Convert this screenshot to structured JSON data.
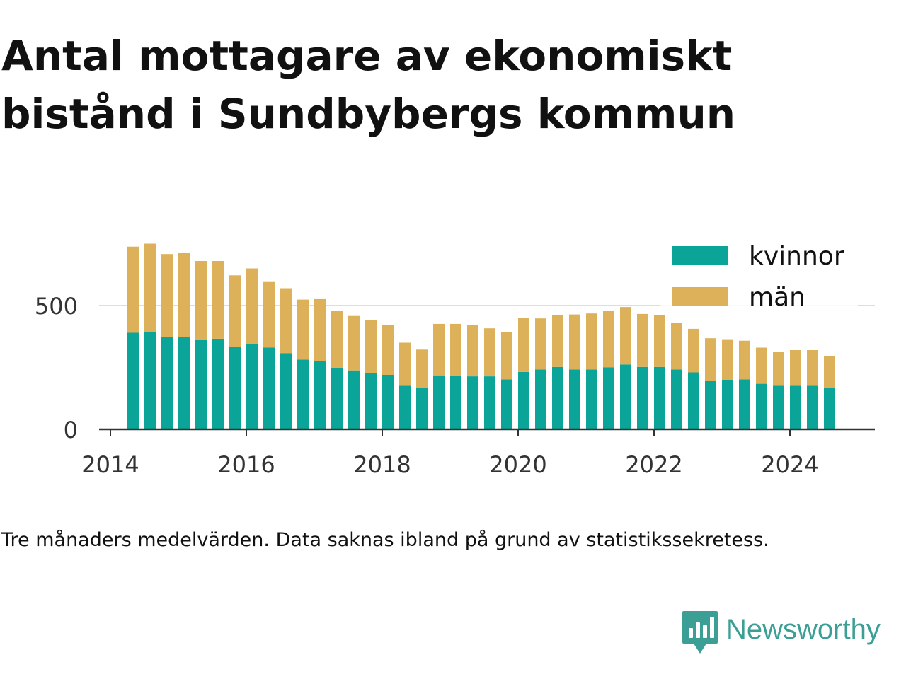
{
  "title": {
    "line1": "Antal mottagare av ekonomiskt",
    "line2": "bistånd i Sundbybergs kommun"
  },
  "note": "Tre månaders medelvärden. Data saknas ibland på grund av statistikssekretess.",
  "brand": {
    "name": "Newsworthy",
    "icon": "newsworthy-logo-icon",
    "color": "#3c9f95"
  },
  "chart_data": {
    "type": "bar",
    "stacked": true,
    "x": [
      "2014-05",
      "2014-08",
      "2014-11",
      "2015-02",
      "2015-05",
      "2015-08",
      "2015-11",
      "2016-02",
      "2016-05",
      "2016-08",
      "2016-11",
      "2017-02",
      "2017-05",
      "2017-08",
      "2017-11",
      "2018-02",
      "2018-05",
      "2018-08",
      "2018-11",
      "2019-02",
      "2019-05",
      "2019-08",
      "2019-11",
      "2020-02",
      "2020-05",
      "2020-08",
      "2020-11",
      "2021-02",
      "2021-05",
      "2021-08",
      "2021-11",
      "2022-02",
      "2022-05",
      "2022-08",
      "2022-11",
      "2023-02",
      "2023-05",
      "2023-08",
      "2023-11",
      "2024-02",
      "2024-05",
      "2024-08"
    ],
    "series": [
      {
        "name": "kvinnor",
        "color": "#0aa598",
        "values": [
          390,
          392,
          372,
          372,
          362,
          366,
          332,
          344,
          330,
          308,
          282,
          276,
          248,
          238,
          228,
          220,
          176,
          168,
          218,
          216,
          214,
          214,
          202,
          232,
          242,
          252,
          242,
          242,
          250,
          262,
          252,
          252,
          242,
          230,
          196,
          200,
          202,
          184,
          176,
          176,
          176,
          168
        ]
      },
      {
        "name": "män",
        "color": "#dcb15a",
        "values": [
          348,
          358,
          336,
          340,
          318,
          314,
          290,
          306,
          268,
          262,
          242,
          250,
          232,
          220,
          212,
          200,
          174,
          154,
          208,
          210,
          206,
          194,
          190,
          218,
          206,
          208,
          222,
          226,
          230,
          232,
          214,
          208,
          188,
          176,
          172,
          164,
          156,
          146,
          138,
          144,
          144,
          128
        ]
      }
    ],
    "xlim": [
      "2013-11",
      "2025-04"
    ],
    "ylim": [
      0,
      780
    ],
    "yticks": [
      0,
      500
    ],
    "ytick_labels": [
      "0",
      "500"
    ],
    "xticks": [
      "2014-01",
      "2016-01",
      "2018-01",
      "2020-01",
      "2022-01",
      "2024-01"
    ],
    "xtick_labels": [
      "2014",
      "2016",
      "2018",
      "2020",
      "2022",
      "2024"
    ],
    "grid": true,
    "legend_position": "top-right"
  }
}
